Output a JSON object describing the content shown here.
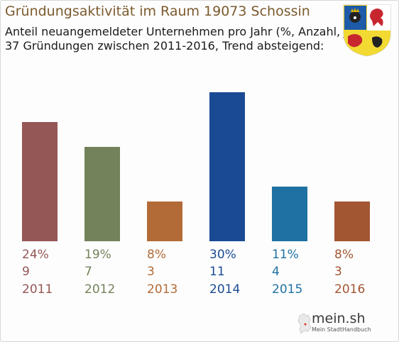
{
  "title": "Gründungsaktivität im Raum 19073 Schossin",
  "subtitle_line1": "Anteil neuangemeldeter Unternehmen pro Jahr (%, Anzahl, Jahr)",
  "subtitle_line2": "37 Gründungen zwischen 2011-2016, Trend absteigend:",
  "logo": {
    "name": "mein.sh",
    "tagline": "Mein StadtHandbuch"
  },
  "chart_data": {
    "type": "bar",
    "categories": [
      "2011",
      "2012",
      "2013",
      "2014",
      "2015",
      "2016"
    ],
    "series": [
      {
        "values": [
          24,
          19,
          8,
          30,
          11,
          8
        ]
      }
    ],
    "percent_labels": [
      "24%",
      "19%",
      "8%",
      "30%",
      "11%",
      "8%"
    ],
    "count_labels": [
      "9",
      "7",
      "3",
      "11",
      "4",
      "3"
    ],
    "colors": [
      "#955656",
      "#73825a",
      "#b26b37",
      "#1a4a94",
      "#1e71a2",
      "#a25632"
    ],
    "ylim": [
      0,
      30
    ],
    "grid": false,
    "legend": "none"
  }
}
